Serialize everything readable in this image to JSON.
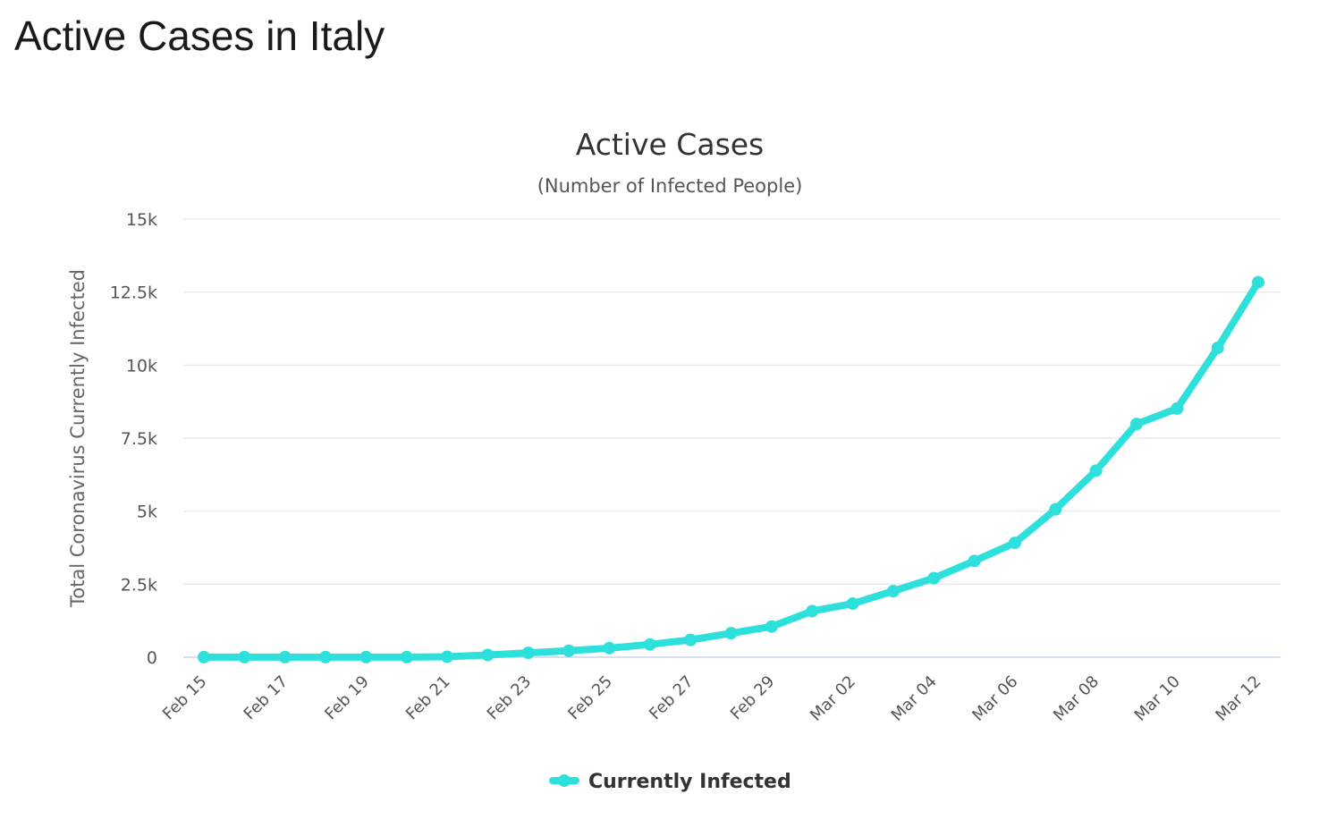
{
  "page": {
    "heading": "Active Cases in Italy"
  },
  "colors": {
    "series": "#2ee0dc",
    "grid": "#e6e6e6",
    "baseline": "#ccd6eb",
    "text": "#555555"
  },
  "chart_data": {
    "type": "line",
    "title": "Active Cases",
    "subtitle": "(Number of Infected People)",
    "xlabel": "",
    "ylabel": "Total Coronavirus Currently Infected",
    "ylim": [
      0,
      15000
    ],
    "yticks": [
      0,
      2500,
      5000,
      7500,
      10000,
      12500,
      15000
    ],
    "ytick_labels": [
      "0",
      "2.5k",
      "5k",
      "7.5k",
      "10k",
      "12.5k",
      "15k"
    ],
    "grid": true,
    "legend_position": "bottom-center",
    "x": [
      "Feb 15",
      "Feb 16",
      "Feb 17",
      "Feb 18",
      "Feb 19",
      "Feb 20",
      "Feb 21",
      "Feb 22",
      "Feb 23",
      "Feb 24",
      "Feb 25",
      "Feb 26",
      "Feb 27",
      "Feb 28",
      "Feb 29",
      "Mar 01",
      "Mar 02",
      "Mar 03",
      "Mar 04",
      "Mar 05",
      "Mar 06",
      "Mar 07",
      "Mar 08",
      "Mar 09",
      "Mar 10",
      "Mar 11",
      "Mar 12"
    ],
    "xtick_labels": [
      "Feb 15",
      "Feb 17",
      "Feb 19",
      "Feb 21",
      "Feb 23",
      "Feb 25",
      "Feb 27",
      "Feb 29",
      "Mar 02",
      "Mar 04",
      "Mar 06",
      "Mar 08",
      "Mar 10",
      "Mar 12"
    ],
    "series": [
      {
        "name": "Currently Infected",
        "color": "#2ee0dc",
        "values": [
          3,
          3,
          3,
          3,
          3,
          3,
          17,
          76,
          150,
          221,
          311,
          438,
          593,
          821,
          1049,
          1577,
          1835,
          2263,
          2706,
          3296,
          3916,
          5061,
          6387,
          7985,
          8514,
          10590,
          12839
        ]
      }
    ]
  }
}
